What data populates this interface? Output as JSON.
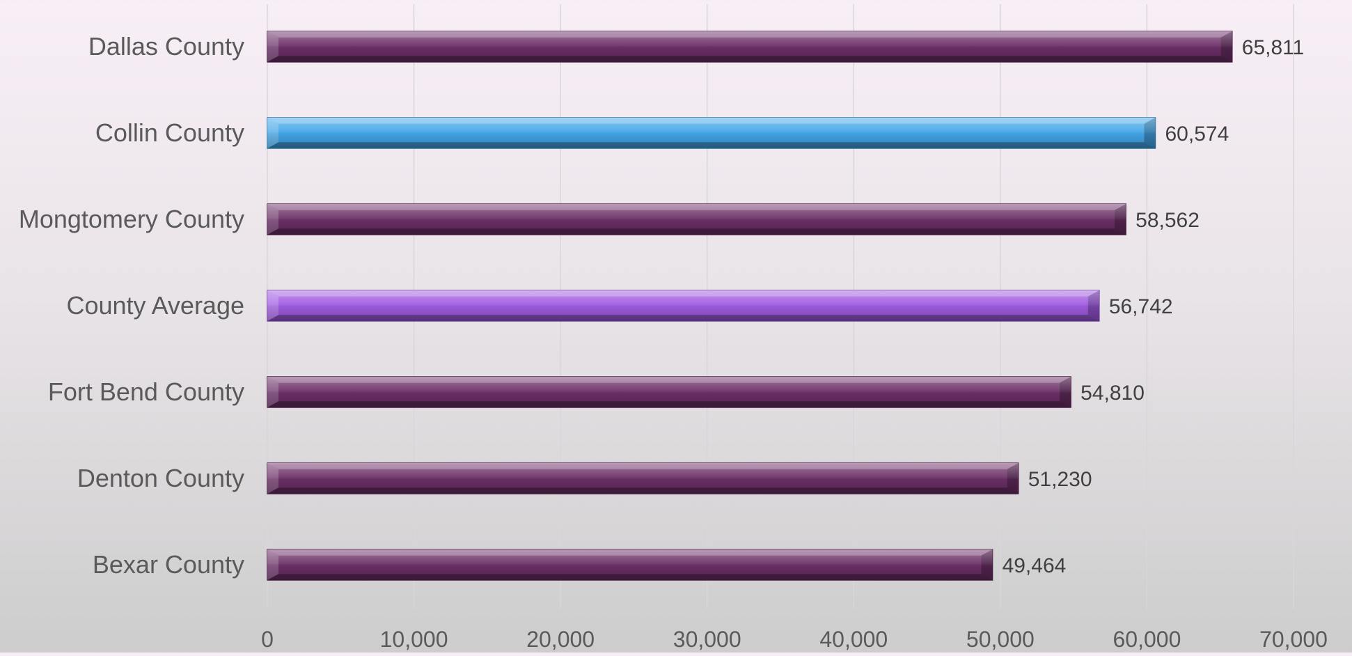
{
  "chart_data": {
    "type": "bar",
    "orientation": "horizontal",
    "categories": [
      "Dallas County",
      "Collin County",
      "Mongtomery County",
      "County Average",
      "Fort Bend County",
      "Denton County",
      "Bexar County"
    ],
    "values": [
      65811,
      60574,
      58562,
      56742,
      54810,
      51230,
      49464
    ],
    "value_labels": [
      "65,811",
      "60,574",
      "58,562",
      "56,742",
      "54,810",
      "51,230",
      "49,464"
    ],
    "bar_colors": [
      "#6b2f67",
      "#43a6e8",
      "#6b2f67",
      "#a05be0",
      "#6b2f67",
      "#6b2f67",
      "#6b2f67"
    ],
    "xlim": [
      0,
      70000
    ],
    "x_ticks": [
      0,
      10000,
      20000,
      30000,
      40000,
      50000,
      60000,
      70000
    ],
    "x_tick_labels": [
      "0",
      "10,000",
      "20,000",
      "30,000",
      "40,000",
      "50,000",
      "60,000",
      "70,000"
    ],
    "title": "",
    "xlabel": "",
    "ylabel": "",
    "grid": "vertical",
    "legend": "none"
  },
  "colors": {
    "gridline": "#d9d6d9",
    "category_label": "#5a5a5a",
    "value_label": "#404040",
    "tick_label": "#5a5a5a"
  }
}
